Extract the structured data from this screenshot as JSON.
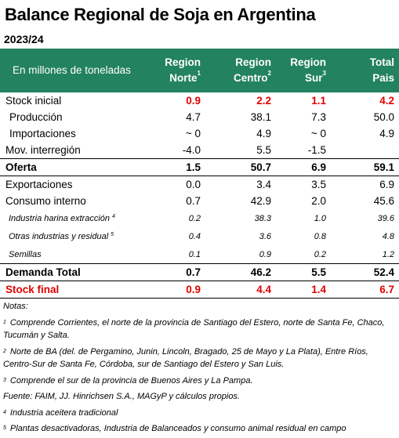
{
  "header": {
    "title": "Balance Regional de Soja en Argentina",
    "subtitle": "2023/24"
  },
  "table": {
    "columns": [
      {
        "label": "En millones de toneladas"
      },
      {
        "line1": "Region",
        "line2": "Norte",
        "sup": "1"
      },
      {
        "line1": "Region",
        "line2": "Centro",
        "sup": "2"
      },
      {
        "line1": "Region",
        "line2": "Sur",
        "sup": "3"
      },
      {
        "line1": "Total",
        "line2": "Pais"
      }
    ],
    "rows": [
      {
        "label": "Stock inicial",
        "cells": [
          "0.9",
          "2.2",
          "1.1",
          "4.2"
        ]
      },
      {
        "label": "Producción",
        "cells": [
          "4.7",
          "38.1",
          "7.3",
          "50.0"
        ]
      },
      {
        "label": "Importaciones",
        "cells": [
          "~ 0",
          "4.9",
          "~ 0",
          "4.9"
        ]
      },
      {
        "label": "Mov. interregión",
        "cells": [
          "-4.0",
          "5.5",
          "-1.5",
          null
        ]
      },
      {
        "label": "Oferta",
        "cells": [
          "1.5",
          "50.7",
          "6.9",
          "59.1"
        ]
      },
      {
        "label": "Exportaciones",
        "cells": [
          "0.0",
          "3.4",
          "3.5",
          "6.9"
        ]
      },
      {
        "label": "Consumo interno",
        "cells": [
          "0.7",
          "42.9",
          "2.0",
          "45.6"
        ]
      },
      {
        "label": "Industria harina extracción",
        "note": "4",
        "cells": [
          "0.2",
          "38.3",
          "1.0",
          "39.6"
        ]
      },
      {
        "label": "Otras industrias y residual",
        "note": "5",
        "cells": [
          "0.4",
          "3.6",
          "0.8",
          "4.8"
        ]
      },
      {
        "label": "Semillas",
        "cells": [
          "0.1",
          "0.9",
          "0.2",
          "1.2"
        ]
      },
      {
        "label": "Demanda Total",
        "cells": [
          "0.7",
          "46.2",
          "5.5",
          "52.4"
        ]
      },
      {
        "label": "Stock final",
        "cells": [
          "0.9",
          "4.4",
          "1.4",
          "6.7"
        ]
      }
    ]
  },
  "notes": {
    "heading": "Notas:",
    "items": [
      {
        "num": "1",
        "text": "Comprende Corrientes, el norte de la provincia de Santiago del Estero, norte de Santa Fe, Chaco, Tucumán y Salta."
      },
      {
        "num": "2",
        "text": "Norte de BA (del. de Pergamino, Junin, Lincoln, Bragado, 25 de Mayo y La Plata), Entre Ríos, Centro-Sur de Santa Fe, Córdoba, sur de Santiago del Estero y San Luis."
      },
      {
        "num": "3",
        "text": "Comprende el sur de la provincia de Buenos Aires y La Pampa."
      },
      {
        "text": "Fuente: FAIM, JJ. Hinrichsen S.A., MAGyP y cálculos propios."
      },
      {
        "num": "4",
        "text": "Industria aceitera tradicional"
      },
      {
        "num": "5",
        "text": "Plantas desactivadoras, Industria de Balanceados y consumo animal residual en campo"
      }
    ]
  }
}
